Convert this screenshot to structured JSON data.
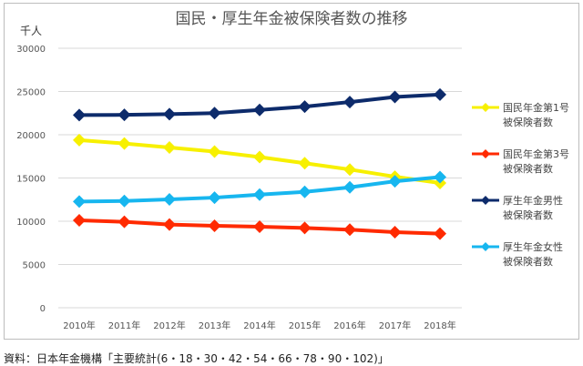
{
  "chart_data": {
    "type": "line",
    "title": "国民・厚生年金被保険者数の推移",
    "ylabel": "千人",
    "xlabel": "",
    "categories": [
      "2010年",
      "2011年",
      "2012年",
      "2013年",
      "2014年",
      "2015年",
      "2016年",
      "2017年",
      "2018年"
    ],
    "ylim": [
      0,
      30000
    ],
    "yticks": [
      0,
      5000,
      10000,
      15000,
      20000,
      25000,
      30000
    ],
    "grid": true,
    "legend_position": "right",
    "series": [
      {
        "name": "国民年金第1号被保険者数",
        "legend_lines": [
          "国民年金第1号",
          "被保険者数"
        ],
        "color": "#f7f000",
        "values": [
          19380,
          18990,
          18530,
          18050,
          17420,
          16710,
          15980,
          15150,
          14420
        ]
      },
      {
        "name": "国民年金第3号被保険者数",
        "legend_lines": [
          "国民年金第3号",
          "被保険者数"
        ],
        "color": "#ff2a00",
        "values": [
          10100,
          9930,
          9620,
          9480,
          9370,
          9230,
          9020,
          8740,
          8570
        ]
      },
      {
        "name": "厚生年金男性被保険者数",
        "legend_lines": [
          "厚生年金男性",
          "被保険者数"
        ],
        "color": "#0d2b6b",
        "values": [
          22270,
          22300,
          22380,
          22500,
          22870,
          23250,
          23780,
          24370,
          24650
        ]
      },
      {
        "name": "厚生年金女性被保険者数",
        "legend_lines": [
          "厚生年金女性",
          "被保険者数"
        ],
        "color": "#17b6ef",
        "values": [
          12270,
          12340,
          12520,
          12730,
          13080,
          13390,
          13920,
          14620,
          15100
        ]
      }
    ]
  },
  "source": "資料：日本年金機構「主要統計(6・18・30・42・54・66・78・90・102)」"
}
